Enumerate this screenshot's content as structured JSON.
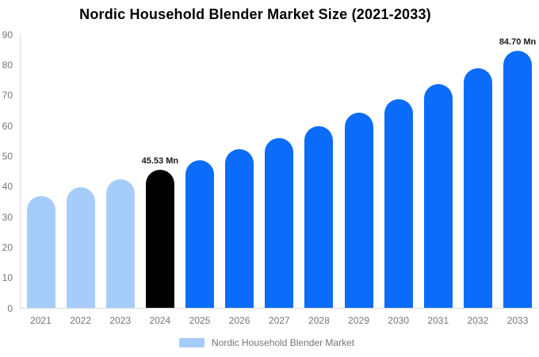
{
  "title": "Nordic Household Blender Market Size (2021-2033)",
  "chart_data": {
    "type": "bar",
    "title": "Nordic Household Blender Market Size (2021-2033)",
    "categories": [
      "2021",
      "2022",
      "2023",
      "2024",
      "2025",
      "2026",
      "2027",
      "2028",
      "2029",
      "2030",
      "2031",
      "2032",
      "2033"
    ],
    "series": [
      {
        "name": "Nordic Household Blender Market",
        "values": [
          37.02,
          39.66,
          42.49,
          45.53,
          48.78,
          52.26,
          55.99,
          59.99,
          64.27,
          68.86,
          73.77,
          79.04,
          84.7
        ]
      }
    ],
    "unit": "Mn",
    "xlabel": "",
    "ylabel": "",
    "ylim": [
      0,
      90
    ],
    "yticks": [
      0,
      10,
      20,
      30,
      40,
      50,
      60,
      70,
      80,
      90
    ],
    "grid": false,
    "bar_style_per_category": [
      "historical",
      "historical",
      "historical",
      "base_year",
      "forecast",
      "forecast",
      "forecast",
      "forecast",
      "forecast",
      "forecast",
      "forecast",
      "forecast",
      "forecast"
    ],
    "style_colors": {
      "historical": "#a6cdfa",
      "base_year": "#000000",
      "forecast": "#0b6cfa"
    },
    "annotations": [
      {
        "category": "2024",
        "text": "45.53 Mn"
      },
      {
        "category": "2033",
        "text": "84.70 Mn"
      }
    ],
    "legend": {
      "label": "Nordic Household Blender Market",
      "swatch_color": "#a6cdfa",
      "position": "bottom-center"
    }
  },
  "colors": {
    "background": "#ffffff",
    "axis_line": "#d9d9d9",
    "axis_text": "#757575",
    "value_label": "#1a1a1a",
    "title_text": "#000000"
  }
}
